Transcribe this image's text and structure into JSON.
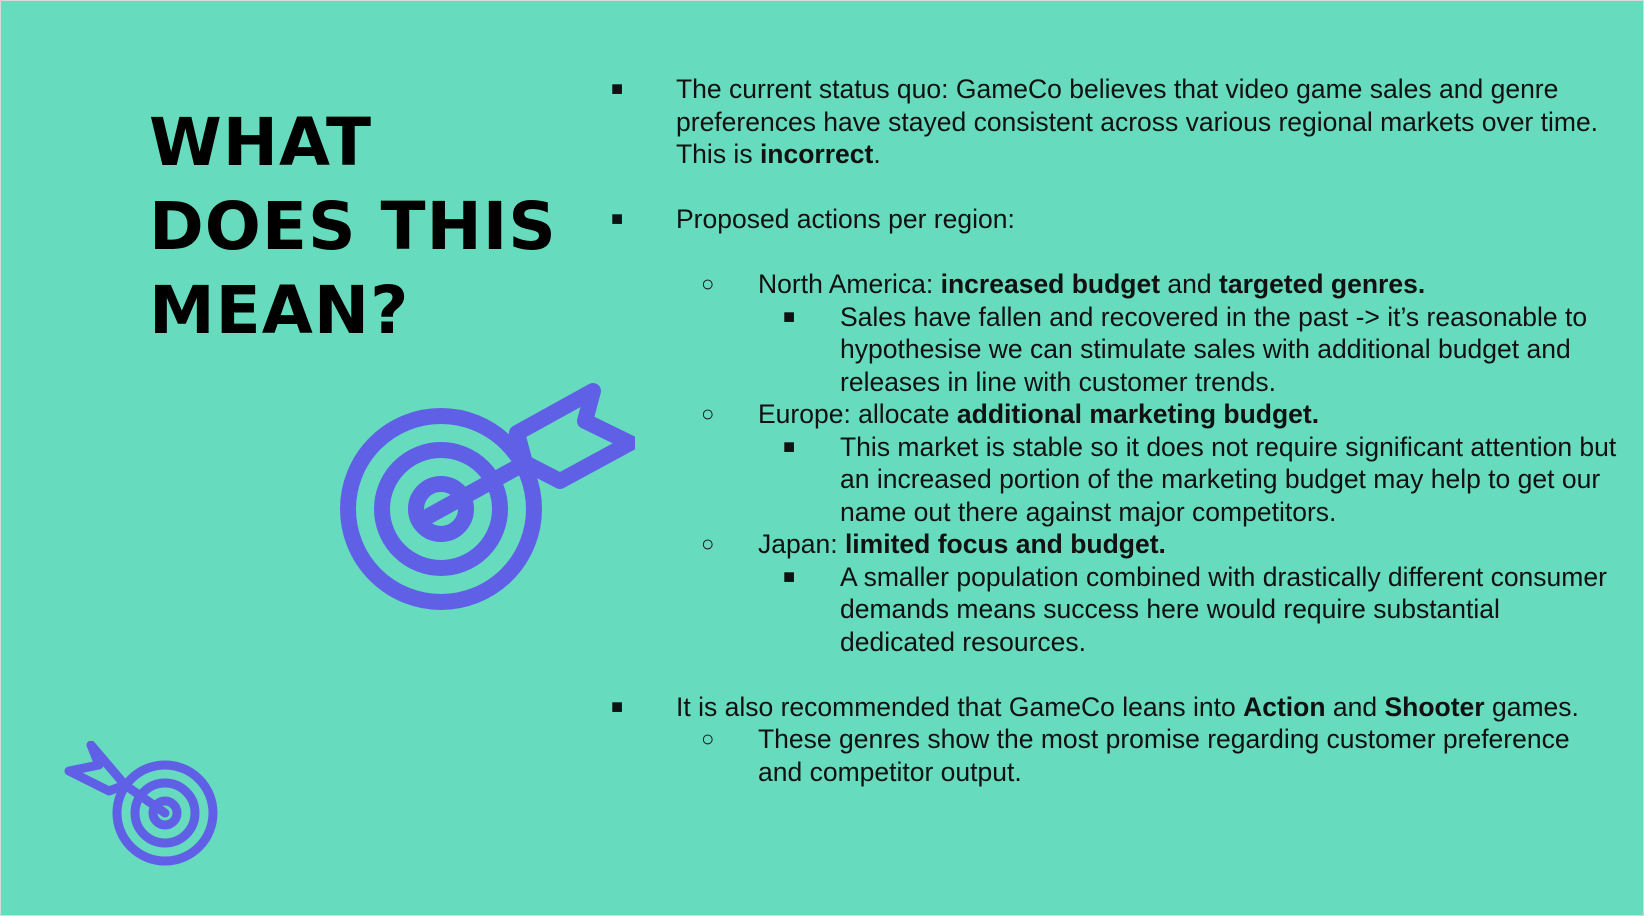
{
  "title": {
    "line1": "WHAT",
    "line2": "DOES THIS",
    "line3": "MEAN?"
  },
  "icons": {
    "large": "target-arrow-icon",
    "small": "target-arrow-icon",
    "color": "#6060e6"
  },
  "colors": {
    "background": "#66dbbd",
    "text": "#111111"
  },
  "bullets": {
    "status": {
      "text_before": "The current status quo: GameCo believes that video game sales and genre preferences have stayed consistent across various regional markets over time. This is ",
      "bold": "incorrect",
      "text_after": "."
    },
    "proposed": {
      "text": "Proposed actions per region:"
    },
    "north_america": {
      "prefix": "North America: ",
      "bold1": "increased budget",
      "mid": " and ",
      "bold2": "targeted genres.",
      "detail": "Sales have fallen and recovered in the past -> it’s reasonable to hypothesise we can stimulate sales with additional budget and releases in line with customer trends."
    },
    "europe": {
      "prefix": "Europe: allocate ",
      "bold": "additional marketing budget.",
      "detail": "This market is  stable so it does not require significant attention but an increased portion of the marketing budget may help to get our name out there against major competitors."
    },
    "japan": {
      "prefix": "Japan: ",
      "bold": "limited focus and budget.",
      "detail": "A smaller population combined with drastically different consumer demands means success here would require substantial dedicated resources."
    },
    "recommend": {
      "prefix": "It is also recommended that GameCo leans into ",
      "bold1": "Action",
      "mid": " and ",
      "bold2": "Shooter",
      "suffix": " games.",
      "detail": "These genres show the most promise regarding customer preference and competitor output."
    }
  }
}
